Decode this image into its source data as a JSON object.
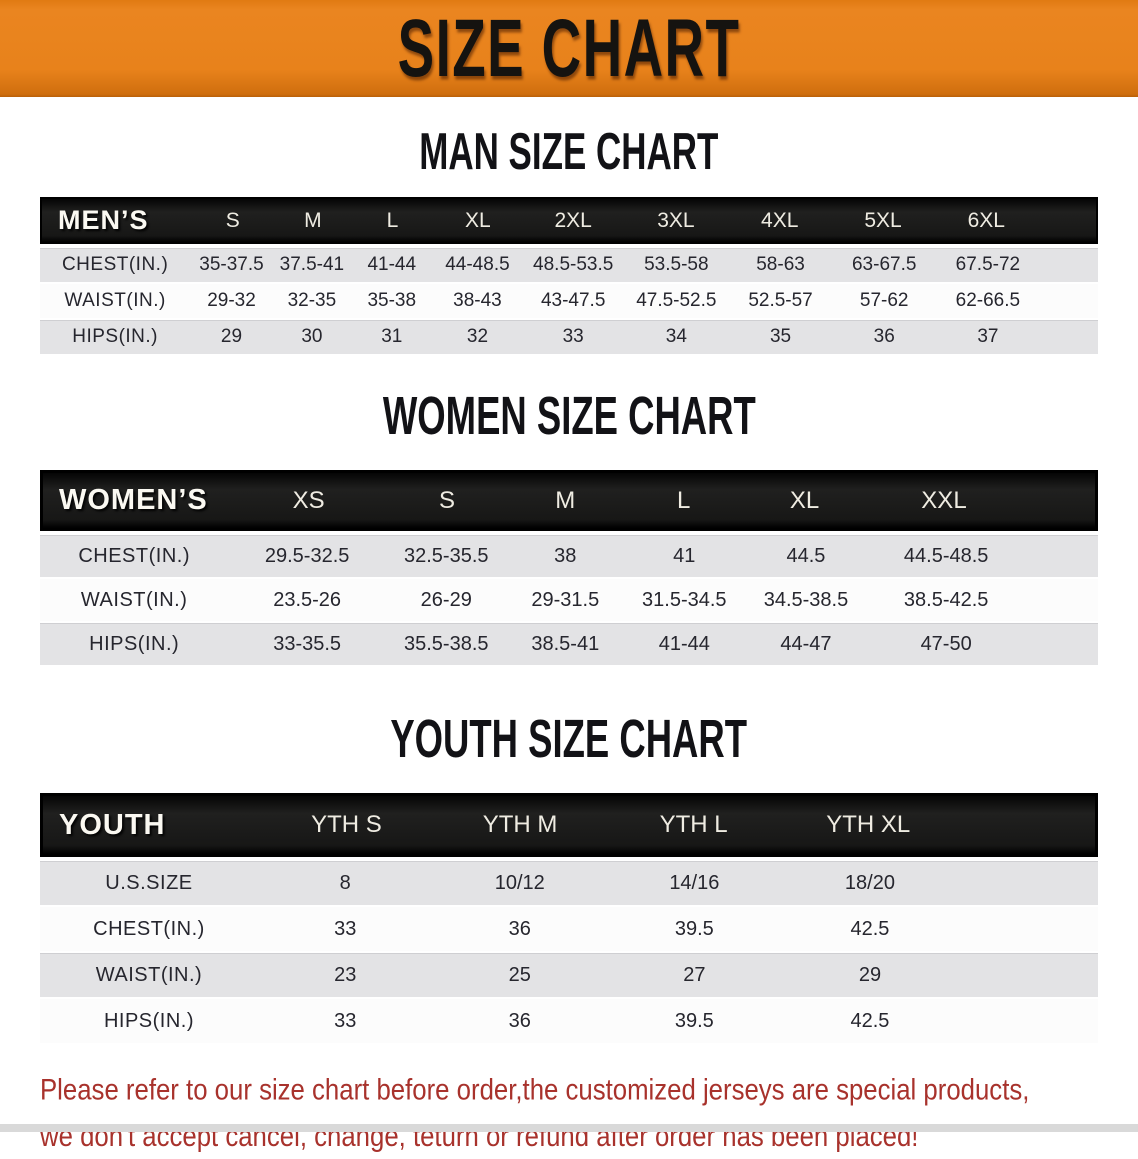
{
  "banner": {
    "title": "SIZE CHART",
    "bg_color": "#e8821b",
    "text_color": "#151310"
  },
  "sections": {
    "men": {
      "heading": "MAN SIZE CHART"
    },
    "women": {
      "heading": "WOMEN SIZE CHART"
    },
    "youth": {
      "heading": "YOUTH SIZE CHART"
    }
  },
  "tables": {
    "men": {
      "header_label": "MEN’S",
      "columns": [
        "S",
        "M",
        "L",
        "XL",
        "2XL",
        "3XL",
        "4XL",
        "5XL",
        "6XL"
      ],
      "rows": [
        {
          "label": "CHEST(IN.)",
          "values": [
            "35-37.5",
            "37.5-41",
            "41-44",
            "44-48.5",
            "48.5-53.5",
            "53.5-58",
            "58-63",
            "63-67.5",
            "67.5-72"
          ]
        },
        {
          "label": "WAIST(IN.)",
          "values": [
            "29-32",
            "32-35",
            "35-38",
            "38-43",
            "43-47.5",
            "47.5-52.5",
            "52.5-57",
            "57-62",
            "62-66.5"
          ]
        },
        {
          "label": "HIPS(IN.)",
          "values": [
            "29",
            "30",
            "31",
            "32",
            "33",
            "34",
            "35",
            "36",
            "37"
          ]
        }
      ]
    },
    "women": {
      "header_label": "WOMEN’S",
      "columns": [
        "XS",
        "S",
        "M",
        "L",
        "XL",
        "XXL"
      ],
      "rows": [
        {
          "label": "CHEST(IN.)",
          "values": [
            "29.5-32.5",
            "32.5-35.5",
            "38",
            "41",
            "44.5",
            "44.5-48.5"
          ]
        },
        {
          "label": "WAIST(IN.)",
          "values": [
            "23.5-26",
            "26-29",
            "29-31.5",
            "31.5-34.5",
            "34.5-38.5",
            "38.5-42.5"
          ]
        },
        {
          "label": "HIPS(IN.)",
          "values": [
            "33-35.5",
            "35.5-38.5",
            "38.5-41",
            "41-44",
            "44-47",
            "47-50"
          ]
        }
      ]
    },
    "youth": {
      "header_label": "YOUTH",
      "columns": [
        "YTH S",
        "YTH M",
        "YTH L",
        "YTH XL"
      ],
      "rows": [
        {
          "label": "U.S.SIZE",
          "values": [
            "8",
            "10/12",
            "14/16",
            "18/20"
          ]
        },
        {
          "label": "CHEST(IN.)",
          "values": [
            "33",
            "36",
            "39.5",
            "42.5"
          ]
        },
        {
          "label": "WAIST(IN.)",
          "values": [
            "23",
            "25",
            "27",
            "29"
          ]
        },
        {
          "label": "HIPS(IN.)",
          "values": [
            "33",
            "36",
            "39.5",
            "42.5"
          ]
        }
      ]
    }
  },
  "footer_note": {
    "color": "#a8322c",
    "lines": [
      "Please refer to our size chart before order,the customized jerseys are special products,",
      "we don't accept cancel, change, teturn or refund after order has been placed!"
    ]
  }
}
